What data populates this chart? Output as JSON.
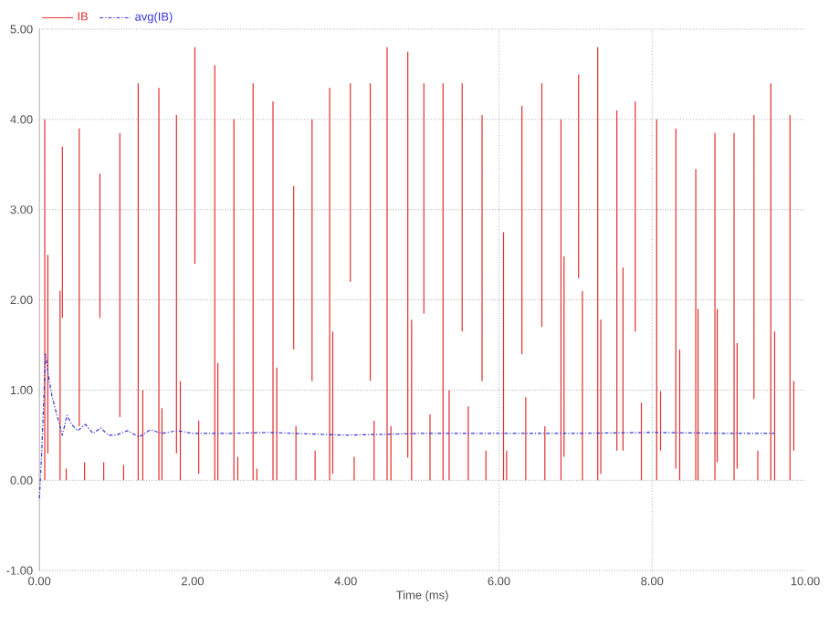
{
  "chart_data": {
    "type": "line",
    "xlabel": "Time (ms)",
    "xlim": [
      0,
      10
    ],
    "xticks": [
      {
        "value": 0,
        "label": "0.00"
      },
      {
        "value": 2,
        "label": "2.00"
      },
      {
        "value": 4,
        "label": "4.00"
      },
      {
        "value": 6,
        "label": "6.00"
      },
      {
        "value": 8,
        "label": "8.00"
      },
      {
        "value": 10,
        "label": "10.00"
      }
    ],
    "ylim": [
      -1,
      5
    ],
    "yticks": [
      {
        "value": -1,
        "label": "-1.00"
      },
      {
        "value": 0,
        "label": "0.00"
      },
      {
        "value": 1,
        "label": "1.00"
      },
      {
        "value": 2,
        "label": "2.00"
      },
      {
        "value": 3,
        "label": "3.00"
      },
      {
        "value": 4,
        "label": "4.00"
      },
      {
        "value": 5,
        "label": "5.00"
      }
    ],
    "grid": "y",
    "legend": "top left",
    "marker": "none",
    "ref_lines": [
      {
        "axis": "x",
        "value": 6,
        "color": "#888888",
        "line_style": "dotted"
      },
      {
        "axis": "x",
        "value": 8,
        "color": "#888888",
        "line_style": "dotted"
      }
    ],
    "series": [
      {
        "name": "IB",
        "color": "#e03030",
        "line_style": "solid",
        "x": [
          0.07,
          0.07,
          null,
          0.11,
          0.11,
          null,
          0.27,
          0.27,
          null,
          0.3,
          0.3,
          null,
          0.35,
          0.35,
          null,
          0.52,
          0.52,
          null,
          0.59,
          0.59,
          null,
          0.79,
          0.79,
          null,
          0.84,
          0.84,
          null,
          1.05,
          1.05,
          null,
          1.1,
          1.1,
          null,
          1.29,
          1.29,
          null,
          1.35,
          1.35,
          null,
          1.56,
          1.56,
          null,
          1.6,
          1.6,
          null,
          1.79,
          1.79,
          null,
          1.84,
          1.84,
          null,
          2.03,
          2.03,
          null,
          2.08,
          2.08,
          null,
          2.29,
          2.29,
          null,
          2.33,
          2.33,
          null,
          2.54,
          2.54,
          null,
          2.59,
          2.59,
          null,
          2.79,
          2.79,
          null,
          2.84,
          2.84,
          null,
          3.05,
          3.05,
          null,
          3.1,
          3.1,
          null,
          3.32,
          3.32,
          null,
          3.35,
          3.35,
          null,
          3.56,
          3.56,
          null,
          3.6,
          3.6,
          null,
          3.79,
          3.79,
          null,
          3.83,
          3.83,
          null,
          4.06,
          4.06,
          null,
          4.11,
          4.11,
          null,
          4.32,
          4.32,
          null,
          4.37,
          4.37,
          null,
          4.54,
          4.54,
          null,
          4.59,
          4.59,
          null,
          4.81,
          4.81,
          null,
          4.86,
          4.86,
          null,
          5.02,
          5.02,
          null,
          5.1,
          5.1,
          null,
          5.27,
          5.27,
          null,
          5.35,
          5.35,
          null,
          5.52,
          5.52,
          null,
          5.6,
          5.6,
          null,
          5.78,
          5.78,
          null,
          5.83,
          5.83,
          null,
          6.06,
          6.06,
          null,
          6.1,
          6.1,
          null,
          6.3,
          6.3,
          null,
          6.35,
          6.35,
          null,
          6.56,
          6.56,
          null,
          6.6,
          6.6,
          null,
          6.81,
          6.81,
          null,
          6.85,
          6.85,
          null,
          7.04,
          7.04,
          null,
          7.09,
          7.09,
          null,
          7.29,
          7.29,
          null,
          7.33,
          7.33,
          null,
          7.54,
          7.54,
          null,
          7.62,
          7.62,
          null,
          7.78,
          7.78,
          null,
          7.86,
          7.86,
          null,
          8.06,
          8.06,
          null,
          8.11,
          8.11,
          null,
          8.31,
          8.31,
          null,
          8.36,
          8.36,
          null,
          8.57,
          8.57,
          null,
          8.6,
          8.6,
          null,
          8.82,
          8.82,
          null,
          8.85,
          8.85,
          null,
          9.07,
          9.07,
          null,
          9.11,
          9.11,
          null,
          9.33,
          9.33,
          null,
          9.38,
          9.38,
          null,
          9.55,
          9.55,
          null,
          9.6,
          9.6,
          null,
          9.8,
          9.8,
          null,
          9.85,
          9.85
        ],
        "values": [
          0,
          4.0,
          null,
          0.3,
          2.5,
          null,
          0,
          2.1,
          null,
          1.8,
          3.7,
          null,
          0,
          0.13,
          null,
          0.6,
          3.9,
          null,
          0,
          0.2,
          null,
          1.8,
          3.4,
          null,
          0,
          0.2,
          null,
          0.7,
          3.85,
          null,
          0,
          0.17,
          null,
          0,
          4.4,
          null,
          0,
          1.0,
          null,
          0,
          4.35,
          null,
          0,
          0.8,
          null,
          0.3,
          4.05,
          null,
          0,
          1.1,
          null,
          2.4,
          4.8,
          null,
          0.07,
          0.66,
          null,
          0,
          4.6,
          null,
          0,
          1.3,
          null,
          0,
          4.0,
          null,
          0,
          0.26,
          null,
          0,
          4.4,
          null,
          0,
          0.13,
          null,
          0,
          4.2,
          null,
          0,
          1.25,
          null,
          1.45,
          3.26,
          null,
          0,
          0.6,
          null,
          1.1,
          4.0,
          null,
          0,
          0.33,
          null,
          0,
          4.35,
          null,
          0.07,
          1.65,
          null,
          2.2,
          4.4,
          null,
          0,
          0.26,
          null,
          1.1,
          4.4,
          null,
          0,
          0.66,
          null,
          0,
          4.8,
          null,
          0,
          0.6,
          null,
          0.25,
          4.75,
          null,
          0,
          1.78,
          null,
          1.85,
          4.4,
          null,
          0,
          0.73,
          null,
          0,
          4.4,
          null,
          0,
          1.0,
          null,
          1.65,
          4.4,
          null,
          0,
          0.82,
          null,
          1.1,
          4.05,
          null,
          0,
          0.33,
          null,
          0,
          2.75,
          null,
          0,
          0.33,
          null,
          1.4,
          4.15,
          null,
          0,
          0.92,
          null,
          1.7,
          4.4,
          null,
          0,
          0.6,
          null,
          0,
          4.0,
          null,
          0.26,
          2.48,
          null,
          2.24,
          4.5,
          null,
          0,
          2.1,
          null,
          0,
          4.8,
          null,
          0.07,
          1.78,
          null,
          0.33,
          4.1,
          null,
          0.33,
          2.36,
          null,
          1.65,
          4.2,
          null,
          0,
          0.86,
          null,
          0,
          4.0,
          null,
          0.33,
          0.99,
          null,
          0.13,
          3.9,
          null,
          0,
          1.45,
          null,
          0,
          3.45,
          null,
          0,
          1.9,
          null,
          0,
          3.85,
          null,
          0.2,
          1.9,
          null,
          0,
          3.85,
          null,
          0.13,
          1.52,
          null,
          0.9,
          4.05,
          null,
          0,
          0.33,
          null,
          0,
          4.4,
          null,
          0,
          1.65,
          null,
          0,
          4.05,
          null,
          0.33,
          1.1
        ]
      },
      {
        "name": "avg(IB)",
        "color": "#3333dd",
        "line_style": "dashed",
        "x": [
          0,
          0.03,
          0.08,
          0.12,
          0.16,
          0.22,
          0.3,
          0.36,
          0.42,
          0.5,
          0.6,
          0.7,
          0.8,
          0.9,
          1.0,
          1.15,
          1.3,
          1.45,
          1.6,
          1.8,
          2.0,
          2.5,
          3.0,
          4.0,
          5.0,
          6.0,
          7.0,
          8.0,
          9.0,
          9.6
        ],
        "values": [
          -0.2,
          0.3,
          1.4,
          1.15,
          0.95,
          0.75,
          0.5,
          0.72,
          0.62,
          0.55,
          0.62,
          0.52,
          0.58,
          0.5,
          0.5,
          0.55,
          0.48,
          0.56,
          0.52,
          0.55,
          0.52,
          0.52,
          0.53,
          0.5,
          0.52,
          0.52,
          0.52,
          0.53,
          0.52,
          0.52
        ]
      }
    ]
  }
}
